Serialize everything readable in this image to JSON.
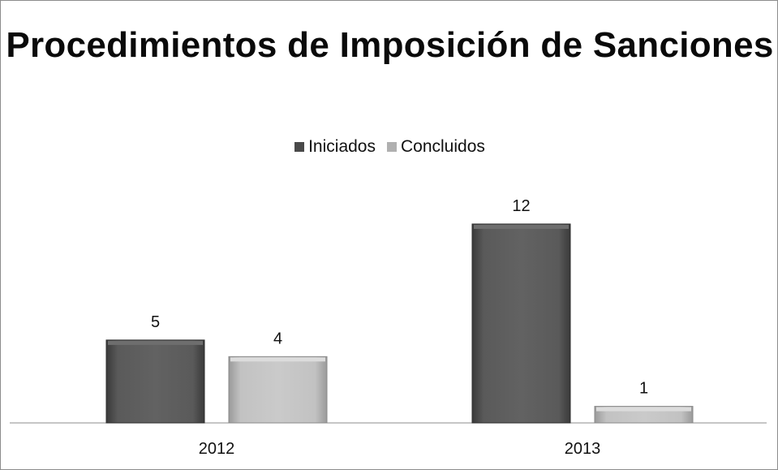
{
  "chart_data": {
    "type": "bar",
    "title": "Procedimientos de Imposición de Sanciones",
    "categories": [
      "2012",
      "2013"
    ],
    "series": [
      {
        "name": "Iniciados",
        "values": [
          5,
          12
        ],
        "color": "#595959"
      },
      {
        "name": "Concluidos",
        "values": [
          4,
          1
        ],
        "color": "#bdbdbd"
      }
    ],
    "legend_position": "top",
    "grid": false,
    "ylim": [
      0,
      13
    ]
  }
}
